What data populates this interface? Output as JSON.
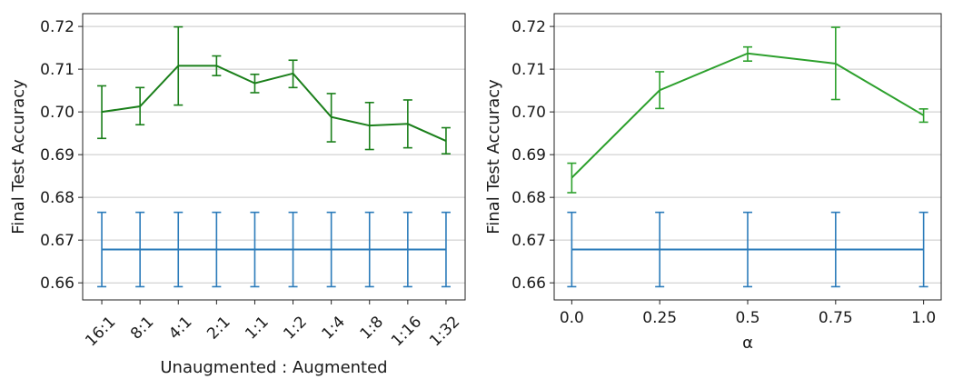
{
  "chart_data": [
    {
      "type": "line",
      "xlabel": "Unaugmented : Augmented",
      "ylabel": "Final Test Accuracy",
      "categories": [
        "16:1",
        "8:1",
        "4:1",
        "2:1",
        "1:1",
        "1:2",
        "1:4",
        "1:8",
        "1:16",
        "1:32"
      ],
      "ylim": [
        0.656,
        0.723
      ],
      "yticks": [
        0.66,
        0.67,
        0.68,
        0.69,
        0.7,
        0.71,
        0.72
      ],
      "ytick_labels": [
        "0.66",
        "0.67",
        "0.68",
        "0.69",
        "0.70",
        "0.71",
        "0.72"
      ],
      "grid": "horizontal",
      "xtick_rotation": -45,
      "series": [
        {
          "color": "#1a7f1a",
          "values": [
            0.7,
            0.7013,
            0.7108,
            0.7108,
            0.7067,
            0.709,
            0.6988,
            0.6968,
            0.6972,
            0.6932
          ],
          "err_low": [
            0.6938,
            0.697,
            0.7016,
            0.7085,
            0.7045,
            0.7057,
            0.693,
            0.6912,
            0.6916,
            0.6902
          ],
          "err_high": [
            0.7061,
            0.7057,
            0.7199,
            0.7131,
            0.7088,
            0.7121,
            0.7043,
            0.7022,
            0.7028,
            0.6963
          ]
        },
        {
          "color": "#2b7bba",
          "values": [
            0.6678,
            0.6678,
            0.6678,
            0.6678,
            0.6678,
            0.6678,
            0.6678,
            0.6678,
            0.6678,
            0.6678
          ],
          "err_low": [
            0.6591,
            0.6591,
            0.6591,
            0.6591,
            0.6591,
            0.6591,
            0.6591,
            0.6591,
            0.6591,
            0.6591
          ],
          "err_high": [
            0.6765,
            0.6765,
            0.6765,
            0.6765,
            0.6765,
            0.6765,
            0.6765,
            0.6765,
            0.6765,
            0.6765
          ]
        }
      ]
    },
    {
      "type": "line",
      "xlabel": "α",
      "ylabel": "Final Test Accuracy",
      "x": [
        0.0,
        0.25,
        0.5,
        0.75,
        1.0
      ],
      "xticks": [
        0.0,
        0.25,
        0.5,
        0.75,
        1.0
      ],
      "xtick_labels": [
        "0.0",
        "0.25",
        "0.5",
        "0.75",
        "1.0"
      ],
      "xlim": [
        -0.05,
        1.05
      ],
      "ylim": [
        0.656,
        0.723
      ],
      "yticks": [
        0.66,
        0.67,
        0.68,
        0.69,
        0.7,
        0.71,
        0.72
      ],
      "ytick_labels": [
        "0.66",
        "0.67",
        "0.68",
        "0.69",
        "0.70",
        "0.71",
        "0.72"
      ],
      "grid": "horizontal",
      "series": [
        {
          "color": "#2ca02c",
          "values": [
            0.6846,
            0.7051,
            0.7137,
            0.7113,
            0.6992
          ],
          "err_low": [
            0.6811,
            0.7008,
            0.7119,
            0.7029,
            0.6976
          ],
          "err_high": [
            0.688,
            0.7094,
            0.7152,
            0.7198,
            0.7007
          ]
        },
        {
          "color": "#2b7bba",
          "values": [
            0.6678,
            0.6678,
            0.6678,
            0.6678,
            0.6678
          ],
          "err_low": [
            0.6591,
            0.6591,
            0.6591,
            0.6591,
            0.6591
          ],
          "err_high": [
            0.6765,
            0.6765,
            0.6765,
            0.6765,
            0.6765
          ]
        }
      ]
    }
  ]
}
